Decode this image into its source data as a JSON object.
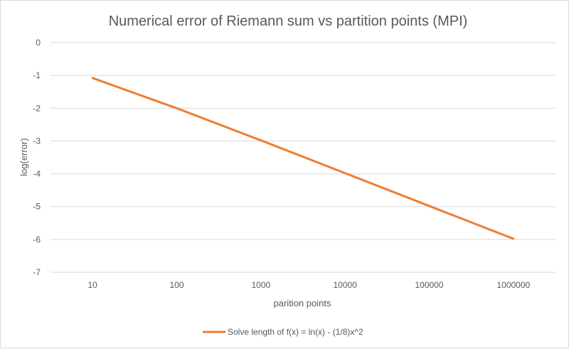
{
  "chart_data": {
    "type": "line",
    "title": "Numerical error of Riemann sum vs partition points (MPI)",
    "xlabel": "parition points",
    "ylabel": "log(error)",
    "categories": [
      "10",
      "100",
      "1000",
      "10000",
      "100000",
      "1000000"
    ],
    "y_ticks": [
      "0",
      "-1",
      "-2",
      "-3",
      "-4",
      "-5",
      "-6",
      "-7"
    ],
    "ylim": [
      -7,
      0
    ],
    "grid": true,
    "legend_position": "bottom",
    "series": [
      {
        "name": "Solve length of f(x) = ln(x) - (1/8)x^2",
        "color": "#ED7D31",
        "values": [
          -1.08,
          -2.0,
          -2.98,
          -3.98,
          -4.98,
          -5.98
        ]
      }
    ]
  }
}
